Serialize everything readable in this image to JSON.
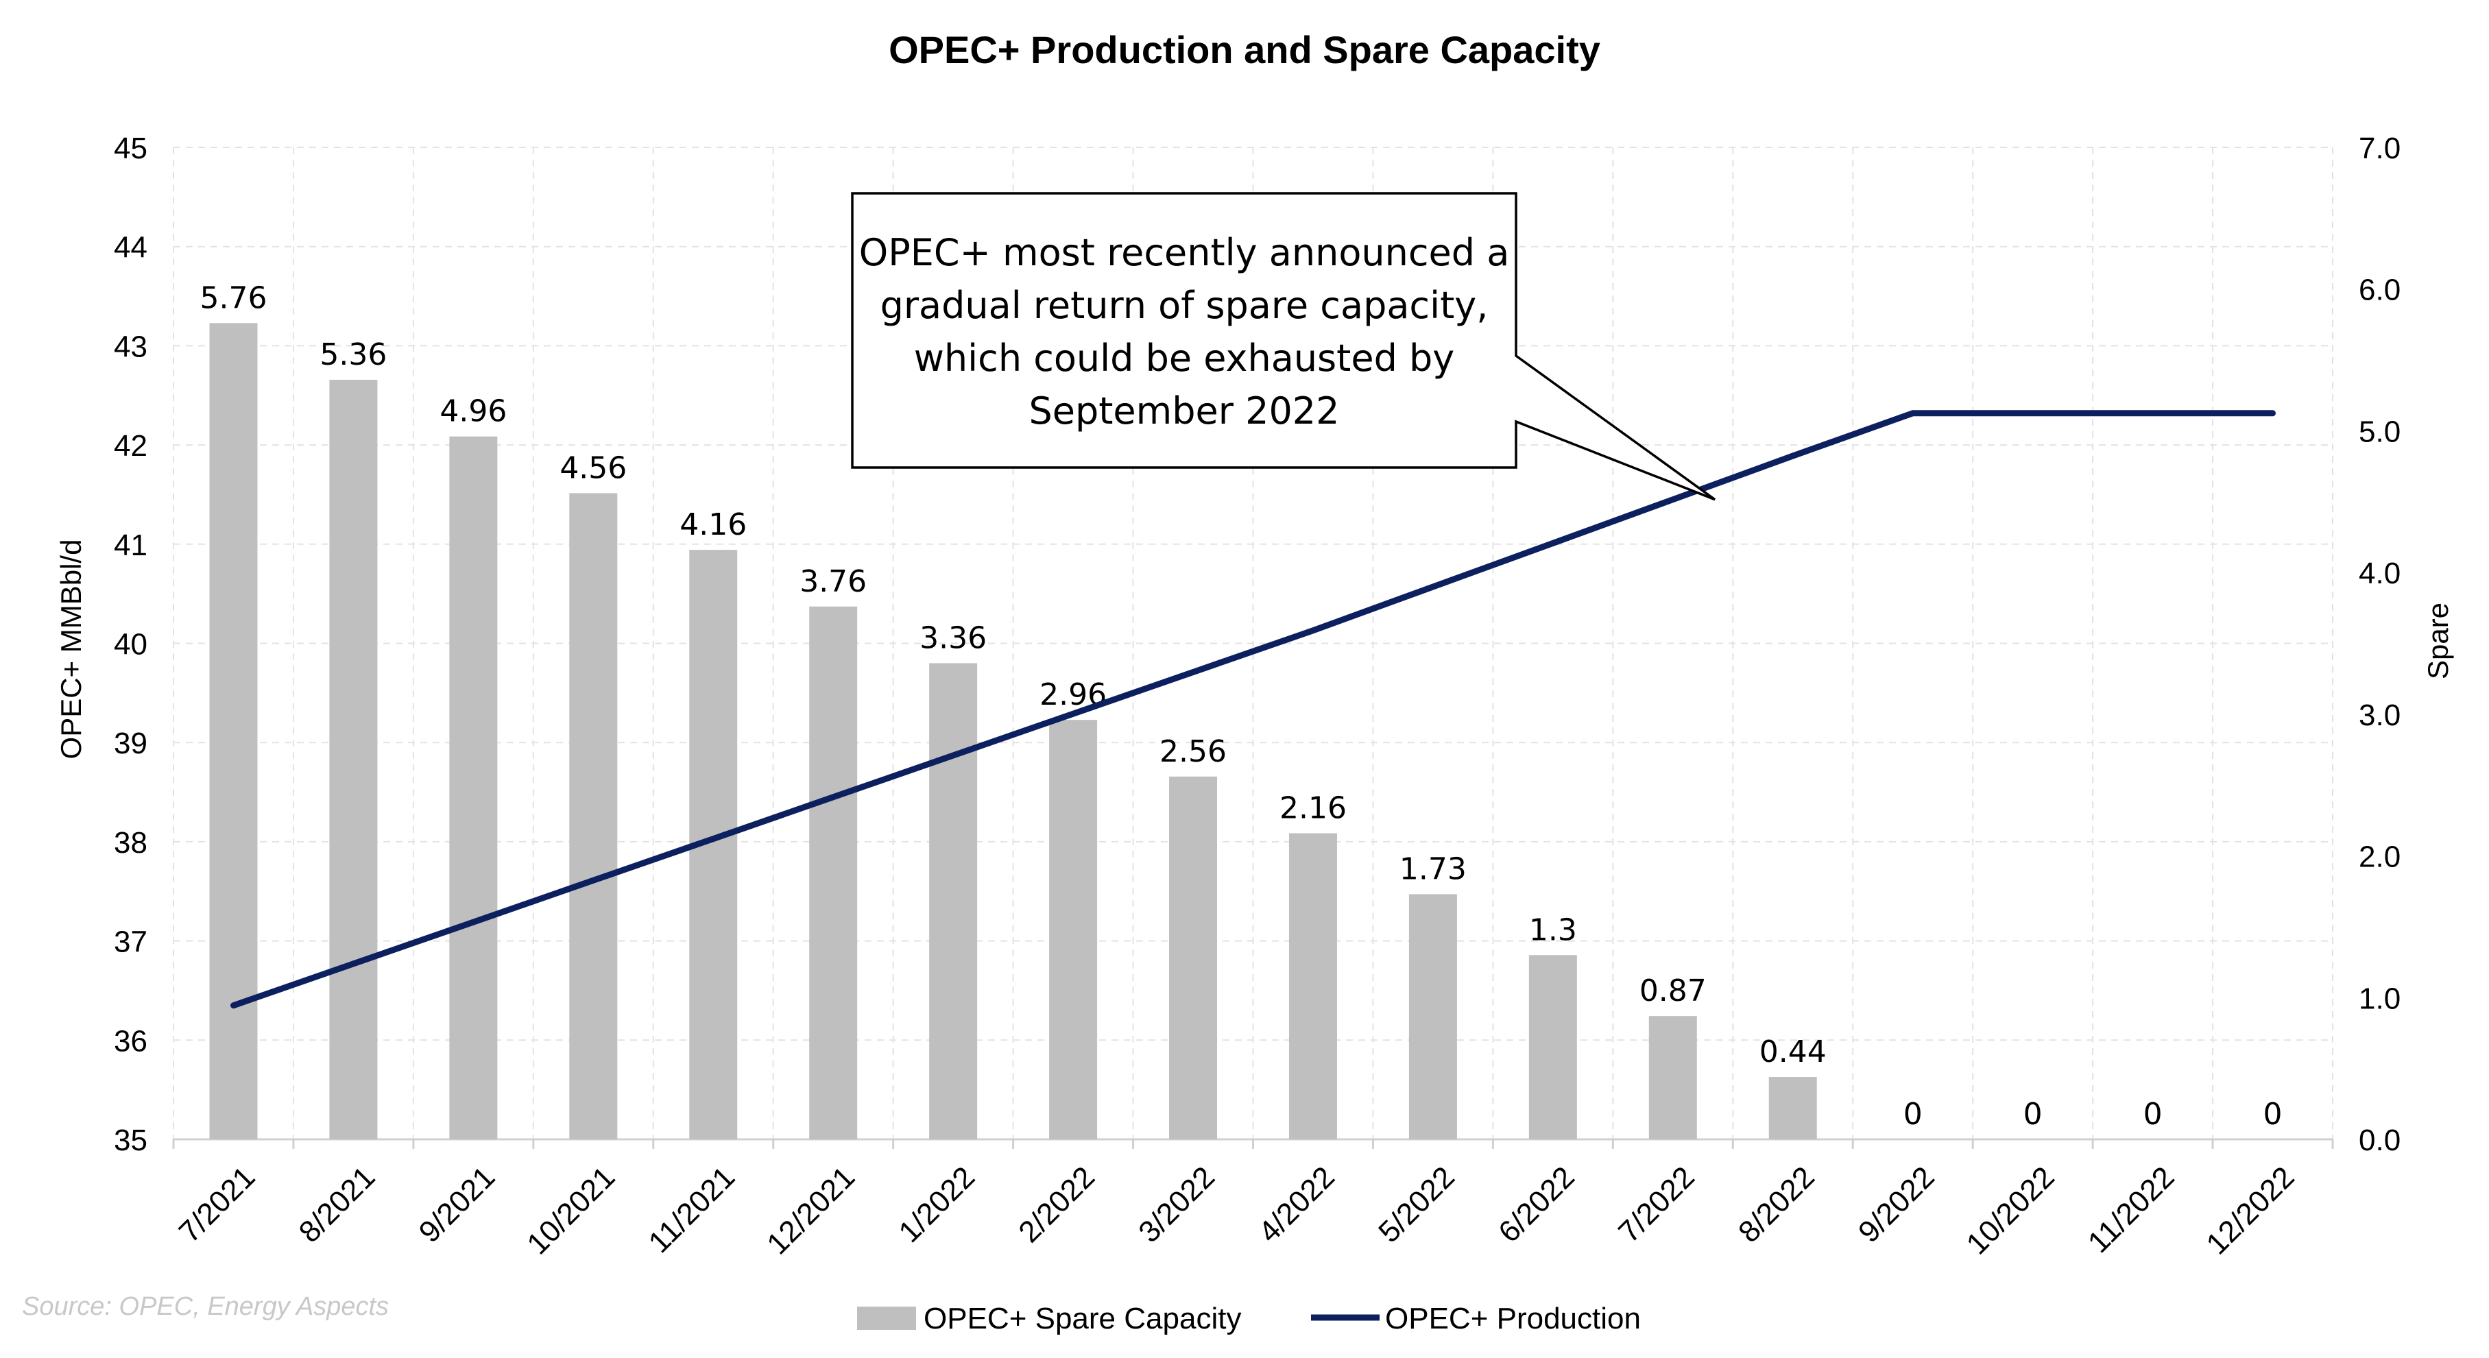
{
  "chart_data": {
    "type": "bar+line",
    "title": "OPEC+ Production and Spare Capacity",
    "categories": [
      "7/2021",
      "8/2021",
      "9/2021",
      "10/2021",
      "11/2021",
      "12/2021",
      "1/2022",
      "2/2022",
      "3/2022",
      "4/2022",
      "5/2022",
      "6/2022",
      "7/2022",
      "8/2022",
      "9/2022",
      "10/2022",
      "11/2022",
      "12/2022"
    ],
    "series": [
      {
        "name": "OPEC+ Spare Capacity",
        "kind": "bar",
        "axis": "right",
        "color": "#BFBFBF",
        "values": [
          5.76,
          5.36,
          4.96,
          4.56,
          4.16,
          3.76,
          3.36,
          2.96,
          2.56,
          2.16,
          1.73,
          1.3,
          0.87,
          0.44,
          0,
          0,
          0,
          0
        ],
        "labels": [
          "5.76",
          "5.36",
          "4.96",
          "4.56",
          "4.16",
          "3.76",
          "3.36",
          "2.96",
          "2.56",
          "2.16",
          "1.73",
          "1.3",
          "0.87",
          "0.44",
          "0",
          "0",
          "0",
          "0"
        ]
      },
      {
        "name": "OPEC+ Production",
        "kind": "line",
        "axis": "left",
        "color": "#0C1F5E",
        "values": [
          36.35,
          36.77,
          37.19,
          37.61,
          38.03,
          38.45,
          38.87,
          39.29,
          39.71,
          40.13,
          40.57,
          41.01,
          41.45,
          41.89,
          42.32,
          42.32,
          42.32,
          42.32
        ]
      }
    ],
    "ylabel": "OPEC+ MMBbl/d",
    "y2label": "Spare",
    "ylim": [
      35,
      45
    ],
    "y2lim": [
      0,
      7
    ],
    "yticks": [
      "35",
      "36",
      "37",
      "38",
      "39",
      "40",
      "41",
      "42",
      "43",
      "44",
      "45"
    ],
    "y2ticks": [
      "0.0",
      "1.0",
      "2.0",
      "3.0",
      "4.0",
      "5.0",
      "6.0",
      "7.0"
    ],
    "grid": true,
    "legend_position": "bottom",
    "annotation": {
      "lines": [
        "OPEC+ most recently announced a",
        "gradual return of spare capacity,",
        "which could be exhausted by",
        "September 2022"
      ],
      "pointer_x": 12.85,
      "pointer_y": 41.45
    },
    "source": "Source: OPEC, Energy Aspects"
  }
}
